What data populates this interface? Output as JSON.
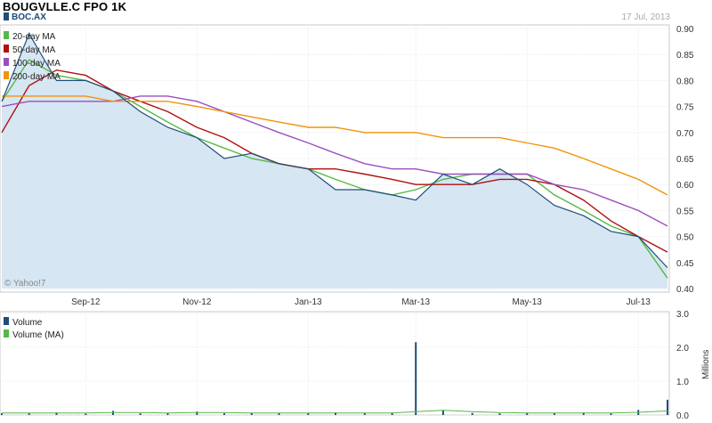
{
  "header": {
    "title": "BOUGVLLE.C FPO 1K",
    "date": "17 Jul, 2013",
    "copyright": "© Yahoo!7"
  },
  "colors": {
    "price": "#1f4e79",
    "price_fill": "#d6e6f2",
    "ma20": "#55b848",
    "ma50": "#b01010",
    "ma100": "#9a4fc0",
    "ma200": "#f0940a",
    "volume": "#1f4e79",
    "volume_ma": "#55b848"
  },
  "chart_data": [
    {
      "type": "line",
      "title": "",
      "xlabel": "",
      "ylabel": "",
      "x_ticks": [
        "Sep-12",
        "Nov-12",
        "Jan-13",
        "Mar-13",
        "May-13",
        "Jul-13"
      ],
      "y_ticks": [
        "0.40",
        "0.45",
        "0.50",
        "0.55",
        "0.60",
        "0.65",
        "0.70",
        "0.75",
        "0.80",
        "0.85",
        "0.90"
      ],
      "ylim": [
        0.4,
        0.9
      ],
      "grid": true,
      "legend": "top-left",
      "x": [
        "2012-07-17",
        "2012-08-01",
        "2012-08-16",
        "2012-09-01",
        "2012-09-16",
        "2012-10-01",
        "2012-10-16",
        "2012-11-01",
        "2012-11-16",
        "2012-12-01",
        "2012-12-16",
        "2013-01-01",
        "2013-01-16",
        "2013-02-01",
        "2013-02-16",
        "2013-03-01",
        "2013-03-16",
        "2013-04-01",
        "2013-04-16",
        "2013-05-01",
        "2013-05-16",
        "2013-06-01",
        "2013-06-16",
        "2013-07-01",
        "2013-07-17"
      ],
      "series": [
        {
          "name": "BOC.AX",
          "values": [
            0.76,
            0.89,
            0.8,
            0.8,
            0.78,
            0.74,
            0.71,
            0.69,
            0.65,
            0.66,
            0.64,
            0.63,
            0.59,
            0.59,
            0.58,
            0.57,
            0.62,
            0.6,
            0.63,
            0.6,
            0.56,
            0.54,
            0.51,
            0.5,
            0.44
          ]
        },
        {
          "name": "20-day MA",
          "values": [
            0.76,
            0.84,
            0.81,
            0.8,
            0.78,
            0.75,
            0.72,
            0.69,
            0.67,
            0.65,
            0.64,
            0.63,
            0.61,
            0.59,
            0.58,
            0.59,
            0.61,
            0.62,
            0.62,
            0.62,
            0.58,
            0.55,
            0.52,
            0.5,
            0.42
          ]
        },
        {
          "name": "50-day MA",
          "values": [
            0.7,
            0.79,
            0.82,
            0.81,
            0.78,
            0.76,
            0.74,
            0.71,
            0.69,
            0.66,
            0.64,
            0.63,
            0.63,
            0.62,
            0.61,
            0.6,
            0.6,
            0.6,
            0.61,
            0.61,
            0.6,
            0.57,
            0.53,
            0.5,
            0.47
          ]
        },
        {
          "name": "100-day MA",
          "values": [
            0.75,
            0.76,
            0.76,
            0.76,
            0.76,
            0.77,
            0.77,
            0.76,
            0.74,
            0.72,
            0.7,
            0.68,
            0.66,
            0.64,
            0.63,
            0.63,
            0.62,
            0.62,
            0.62,
            0.62,
            0.6,
            0.59,
            0.57,
            0.55,
            0.52
          ]
        },
        {
          "name": "200-day MA",
          "values": [
            0.77,
            0.77,
            0.77,
            0.77,
            0.76,
            0.76,
            0.76,
            0.75,
            0.74,
            0.73,
            0.72,
            0.71,
            0.71,
            0.7,
            0.7,
            0.7,
            0.69,
            0.69,
            0.69,
            0.68,
            0.67,
            0.65,
            0.63,
            0.61,
            0.58
          ]
        }
      ]
    },
    {
      "type": "bar",
      "title": "",
      "xlabel": "",
      "ylabel": "Millions",
      "y_ticks": [
        "0.0",
        "1.0",
        "2.0",
        "3.0"
      ],
      "ylim": [
        0,
        3.0
      ],
      "grid": true,
      "legend": "top-left",
      "x": [
        "2012-07-17",
        "2012-08-01",
        "2012-08-16",
        "2012-09-01",
        "2012-09-16",
        "2012-10-01",
        "2012-10-16",
        "2012-11-01",
        "2012-11-16",
        "2012-12-01",
        "2012-12-16",
        "2013-01-01",
        "2013-01-16",
        "2013-02-01",
        "2013-02-16",
        "2013-03-01",
        "2013-03-16",
        "2013-04-01",
        "2013-04-16",
        "2013-05-01",
        "2013-05-16",
        "2013-06-01",
        "2013-06-16",
        "2013-07-01",
        "2013-07-17"
      ],
      "series": [
        {
          "name": "Volume",
          "values": [
            0.05,
            0.06,
            0.08,
            0.04,
            0.12,
            0.05,
            0.06,
            0.1,
            0.05,
            0.07,
            0.06,
            0.05,
            0.08,
            0.06,
            0.07,
            2.15,
            0.15,
            0.06,
            0.05,
            0.07,
            0.06,
            0.08,
            0.05,
            0.15,
            0.45
          ]
        },
        {
          "name": "Volume (MA)",
          "values": [
            0.06,
            0.06,
            0.06,
            0.06,
            0.07,
            0.07,
            0.06,
            0.07,
            0.07,
            0.06,
            0.06,
            0.06,
            0.06,
            0.06,
            0.06,
            0.1,
            0.14,
            0.1,
            0.07,
            0.06,
            0.06,
            0.06,
            0.06,
            0.08,
            0.12
          ]
        }
      ]
    }
  ]
}
